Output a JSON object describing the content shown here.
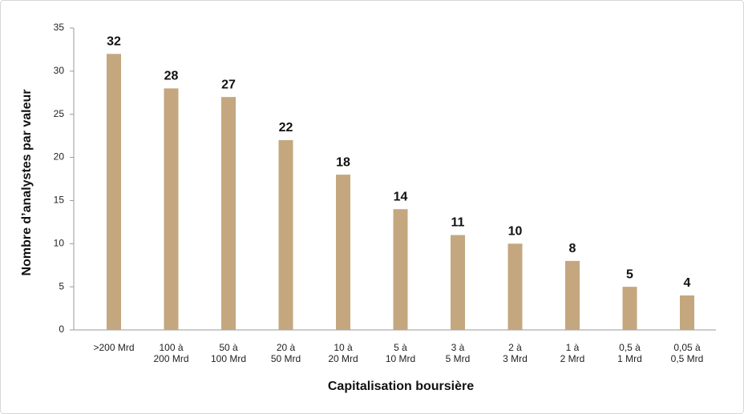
{
  "chart_data": {
    "type": "bar",
    "x_label": "Capitalisation boursière",
    "y_label": "Nombre d’analystes par valeur",
    "categories": [
      [
        ">200 Mrd"
      ],
      [
        "100 à",
        "200 Mrd"
      ],
      [
        "50 à",
        "100 Mrd"
      ],
      [
        "20 à",
        "50 Mrd"
      ],
      [
        "10 à",
        "20 Mrd"
      ],
      [
        "5 à",
        "10 Mrd"
      ],
      [
        "3 à",
        "5 Mrd"
      ],
      [
        "2 à",
        "3 Mrd"
      ],
      [
        "1 à",
        "2 Mrd"
      ],
      [
        "0,5 à",
        "1 Mrd"
      ],
      [
        "0,05 à",
        "0,5 Mrd"
      ]
    ],
    "values": [
      32,
      28,
      27,
      22,
      18,
      14,
      11,
      10,
      8,
      5,
      4
    ],
    "color": "#c4a77f",
    "ylim": [
      0,
      35
    ],
    "yticks": [
      0,
      5,
      10,
      15,
      20,
      25,
      30,
      35
    ],
    "grid": false
  }
}
